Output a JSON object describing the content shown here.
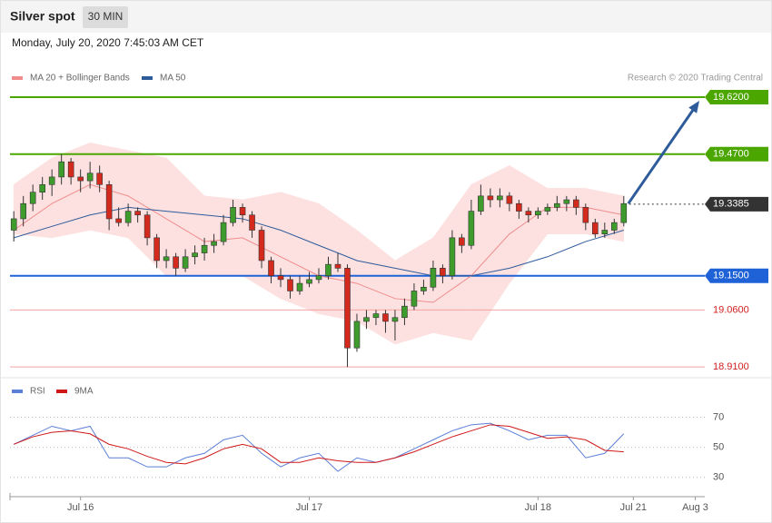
{
  "chart_data": [
    {
      "type": "candlestick",
      "title": "Silver spot",
      "interval": "30 MIN",
      "subtitle": "Monday, July 20, 2020 7:45:03 AM CET",
      "source": "Research © 2020 Trading Central",
      "up_color": "#3d9c2c",
      "down_color": "#d42a1e",
      "ohlc": [
        [
          19.27,
          19.32,
          19.24,
          19.3
        ],
        [
          19.3,
          19.36,
          19.28,
          19.34
        ],
        [
          19.34,
          19.39,
          19.32,
          19.37
        ],
        [
          19.37,
          19.41,
          19.35,
          19.39
        ],
        [
          19.39,
          19.43,
          19.36,
          19.41
        ],
        [
          19.41,
          19.47,
          19.39,
          19.45
        ],
        [
          19.45,
          19.46,
          19.39,
          19.41
        ],
        [
          19.41,
          19.43,
          19.37,
          19.4
        ],
        [
          19.4,
          19.45,
          19.38,
          19.42
        ],
        [
          19.42,
          19.44,
          19.37,
          19.39
        ],
        [
          19.39,
          19.4,
          19.27,
          19.3
        ],
        [
          19.3,
          19.33,
          19.28,
          19.29
        ],
        [
          19.29,
          19.34,
          19.28,
          19.32
        ],
        [
          19.32,
          19.33,
          19.29,
          19.31
        ],
        [
          19.31,
          19.32,
          19.23,
          19.25
        ],
        [
          19.25,
          19.26,
          19.17,
          19.19
        ],
        [
          19.19,
          19.22,
          19.17,
          19.2
        ],
        [
          19.2,
          19.21,
          19.15,
          19.17
        ],
        [
          19.17,
          19.22,
          19.16,
          19.2
        ],
        [
          19.2,
          19.23,
          19.18,
          19.21
        ],
        [
          19.21,
          19.25,
          19.19,
          19.23
        ],
        [
          19.23,
          19.26,
          19.21,
          19.24
        ],
        [
          19.24,
          19.31,
          19.23,
          19.29
        ],
        [
          19.29,
          19.35,
          19.28,
          19.33
        ],
        [
          19.33,
          19.34,
          19.29,
          19.31
        ],
        [
          19.31,
          19.32,
          19.25,
          19.27
        ],
        [
          19.27,
          19.28,
          19.17,
          19.19
        ],
        [
          19.19,
          19.2,
          19.13,
          19.15
        ],
        [
          19.15,
          19.17,
          19.12,
          19.14
        ],
        [
          19.14,
          19.15,
          19.09,
          19.11
        ],
        [
          19.11,
          19.15,
          19.1,
          19.13
        ],
        [
          19.13,
          19.16,
          19.12,
          19.14
        ],
        [
          19.14,
          19.17,
          19.13,
          19.15
        ],
        [
          19.15,
          19.2,
          19.14,
          19.18
        ],
        [
          19.18,
          19.21,
          19.16,
          19.17
        ],
        [
          19.17,
          19.18,
          18.91,
          18.96
        ],
        [
          18.96,
          19.05,
          18.95,
          19.03
        ],
        [
          19.03,
          19.06,
          19.01,
          19.04
        ],
        [
          19.04,
          19.06,
          19.02,
          19.05
        ],
        [
          19.05,
          19.06,
          19.0,
          19.03
        ],
        [
          19.03,
          19.06,
          18.98,
          19.04
        ],
        [
          19.04,
          19.09,
          19.02,
          19.07
        ],
        [
          19.07,
          19.13,
          19.06,
          19.11
        ],
        [
          19.11,
          19.14,
          19.1,
          19.12
        ],
        [
          19.12,
          19.19,
          19.11,
          19.17
        ],
        [
          19.17,
          19.18,
          19.13,
          19.15
        ],
        [
          19.15,
          19.27,
          19.14,
          19.25
        ],
        [
          19.25,
          19.26,
          19.21,
          19.23
        ],
        [
          19.23,
          19.35,
          19.22,
          19.32
        ],
        [
          19.32,
          19.39,
          19.31,
          19.36
        ],
        [
          19.36,
          19.38,
          19.33,
          19.35
        ],
        [
          19.35,
          19.38,
          19.33,
          19.36
        ],
        [
          19.36,
          19.37,
          19.32,
          19.34
        ],
        [
          19.34,
          19.35,
          19.3,
          19.32
        ],
        [
          19.32,
          19.33,
          19.29,
          19.31
        ],
        [
          19.31,
          19.33,
          19.3,
          19.32
        ],
        [
          19.32,
          19.34,
          19.31,
          19.33
        ],
        [
          19.33,
          19.36,
          19.32,
          19.34
        ],
        [
          19.34,
          19.36,
          19.32,
          19.35
        ],
        [
          19.35,
          19.36,
          19.31,
          19.33
        ],
        [
          19.33,
          19.34,
          19.27,
          19.29
        ],
        [
          19.29,
          19.3,
          19.25,
          19.26
        ],
        [
          19.26,
          19.29,
          19.25,
          19.27
        ],
        [
          19.27,
          19.3,
          19.26,
          19.29
        ],
        [
          19.29,
          19.36,
          19.28,
          19.34
        ]
      ],
      "series": [
        {
          "name": "MA 20 + Bollinger Bands",
          "color": "#f08c8c",
          "band_color": "#fde1e1",
          "x": [
            0,
            4,
            8,
            12,
            16,
            20,
            24,
            28,
            32,
            36,
            40,
            44,
            48,
            52,
            56,
            60,
            64
          ],
          "values": [
            19.27,
            19.34,
            19.39,
            19.36,
            19.3,
            19.24,
            19.25,
            19.2,
            19.15,
            19.13,
            19.09,
            19.08,
            19.15,
            19.26,
            19.33,
            19.33,
            19.31
          ],
          "upper": [
            19.39,
            19.46,
            19.5,
            19.48,
            19.46,
            19.36,
            19.35,
            19.37,
            19.34,
            19.27,
            19.19,
            19.25,
            19.39,
            19.44,
            19.38,
            19.38,
            19.36
          ],
          "lower": [
            19.26,
            19.25,
            19.27,
            19.25,
            19.15,
            19.15,
            19.15,
            19.09,
            19.05,
            19.03,
            18.97,
            19.0,
            18.98,
            19.13,
            19.26,
            19.26,
            19.24
          ]
        },
        {
          "name": "MA 50",
          "color": "#2e5b9a",
          "x": [
            0,
            4,
            8,
            12,
            16,
            20,
            24,
            28,
            32,
            36,
            40,
            44,
            48,
            52,
            56,
            60,
            64
          ],
          "values": [
            19.25,
            19.28,
            19.31,
            19.33,
            19.32,
            19.31,
            19.3,
            19.27,
            19.23,
            19.19,
            19.17,
            19.15,
            19.15,
            19.17,
            19.2,
            19.24,
            19.27
          ]
        }
      ],
      "levels": [
        {
          "value": 19.62,
          "label": "19.6200",
          "color": "#4ca600",
          "tag": true,
          "dotted": false
        },
        {
          "value": 19.47,
          "label": "19.4700",
          "color": "#4ca600",
          "tag": true,
          "dotted": false
        },
        {
          "value": 19.3385,
          "label": "19.3385",
          "color": "#333333",
          "tag": true,
          "dotted": true
        },
        {
          "value": 19.15,
          "label": "19.1500",
          "color": "#1f62d8",
          "tag": true,
          "dotted": false
        },
        {
          "value": 19.06,
          "label": "19.0600",
          "color": "#f4a3a3",
          "tag": false,
          "dotted": false
        },
        {
          "value": 18.91,
          "label": "18.9100",
          "color": "#f4a3a3",
          "tag": false,
          "dotted": false
        }
      ],
      "arrow_color": "#2e5b9a",
      "xlim": [
        -0.4,
        72.5
      ],
      "ylim": [
        18.896,
        19.644
      ],
      "xticks": [
        {
          "value": 7,
          "label": "Jul 16"
        },
        {
          "value": 31,
          "label": "Jul 17"
        },
        {
          "value": 55,
          "label": "Jul 18"
        },
        {
          "value": 65,
          "label": "Jul 21"
        },
        {
          "value": 71.5,
          "label": "Aug 3"
        }
      ]
    },
    {
      "type": "line",
      "series": [
        {
          "name": "RSI",
          "color": "#5b7fd6",
          "x": [
            0,
            2,
            4,
            6,
            8,
            10,
            12,
            14,
            16,
            18,
            20,
            22,
            24,
            26,
            28,
            30,
            32,
            34,
            36,
            38,
            40,
            42,
            44,
            46,
            48,
            50,
            52,
            54,
            56,
            58,
            60,
            62,
            64
          ],
          "values": [
            52,
            58,
            64,
            61,
            64,
            43,
            43,
            37,
            37,
            43,
            46,
            55,
            58,
            46,
            37,
            43,
            46,
            34,
            43,
            40,
            43,
            49,
            55,
            61,
            65,
            66,
            61,
            55,
            58,
            58,
            43,
            46,
            59
          ]
        },
        {
          "name": "9MA",
          "color": "#d01818",
          "x": [
            0,
            2,
            4,
            6,
            8,
            10,
            12,
            14,
            16,
            18,
            20,
            22,
            24,
            26,
            28,
            30,
            32,
            34,
            36,
            38,
            40,
            42,
            44,
            46,
            48,
            50,
            52,
            54,
            56,
            58,
            60,
            62,
            64
          ],
          "values": [
            52,
            57,
            60,
            61,
            59,
            52,
            49,
            44,
            40,
            39,
            43,
            49,
            52,
            49,
            40,
            40,
            43,
            41,
            40,
            40,
            43,
            47,
            52,
            57,
            61,
            65,
            64,
            60,
            56,
            57,
            55,
            48,
            47
          ]
        }
      ],
      "xlim": [
        -0.4,
        72.5
      ],
      "ylim": [
        22,
        80
      ],
      "yticks": [
        30,
        50,
        70
      ]
    }
  ]
}
